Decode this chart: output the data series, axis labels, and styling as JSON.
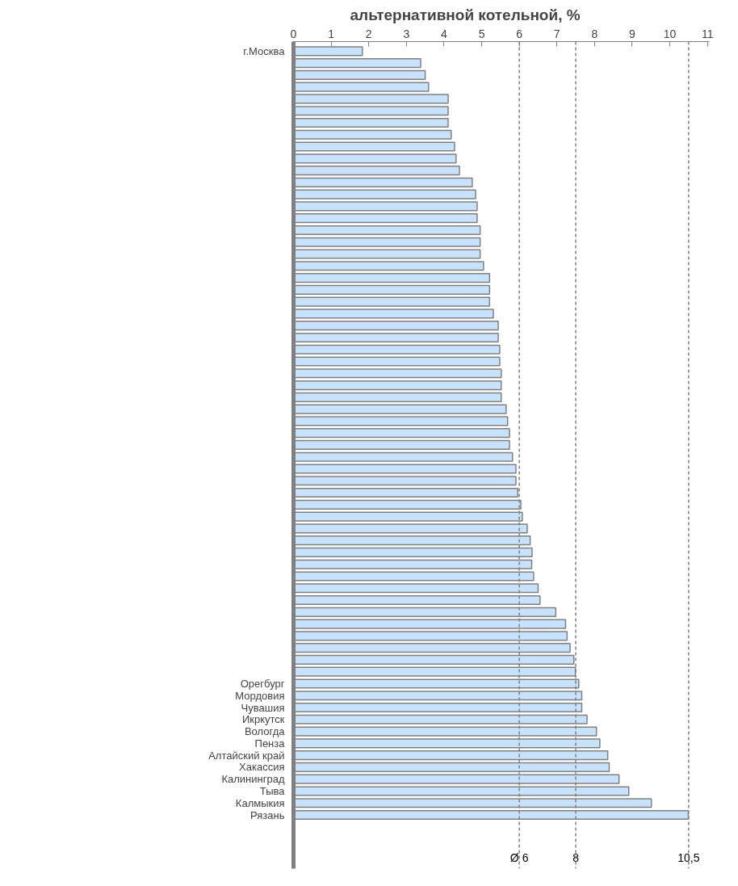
{
  "chart_data": {
    "type": "bar",
    "orientation": "horizontal",
    "title": "альтернативной котельной, %",
    "categories": [
      "г.Москва",
      null,
      null,
      null,
      null,
      null,
      null,
      null,
      null,
      null,
      null,
      null,
      null,
      null,
      null,
      null,
      null,
      null,
      null,
      null,
      null,
      null,
      null,
      null,
      null,
      null,
      null,
      null,
      null,
      null,
      null,
      null,
      null,
      null,
      null,
      null,
      null,
      null,
      null,
      null,
      null,
      null,
      null,
      null,
      null,
      null,
      null,
      null,
      null,
      null,
      null,
      null,
      null,
      "Орегбург",
      "Мордовия",
      "Чувашия",
      "Икркутск",
      "Вологда",
      "Пенза",
      "Алтайский край",
      "Хакассия",
      "Калининград",
      "Тыва",
      "Калмыкия",
      "Рязань"
    ],
    "values": [
      1.83,
      3.38,
      3.5,
      3.59,
      4.11,
      4.11,
      4.11,
      4.19,
      4.28,
      4.32,
      4.41,
      4.75,
      4.84,
      4.88,
      4.88,
      4.96,
      4.96,
      4.96,
      5.05,
      5.21,
      5.21,
      5.21,
      5.31,
      5.44,
      5.44,
      5.48,
      5.48,
      5.52,
      5.52,
      5.52,
      5.65,
      5.69,
      5.74,
      5.74,
      5.82,
      5.91,
      5.91,
      5.96,
      6.04,
      6.08,
      6.21,
      6.29,
      6.34,
      6.33,
      6.38,
      6.5,
      6.55,
      6.97,
      7.23,
      7.27,
      7.35,
      7.45,
      7.49,
      7.58,
      7.66,
      7.66,
      7.8,
      8.05,
      8.14,
      8.35,
      8.39,
      8.65,
      8.91,
      9.51,
      10.49
    ],
    "color": "#c9e2fb",
    "xlim": [
      0,
      11.05
    ],
    "xticks": [
      0,
      1,
      2,
      3,
      4,
      5,
      6,
      7,
      8,
      9,
      10,
      11
    ],
    "grid": false,
    "ref_lines": [
      {
        "axis": "x",
        "value": 6,
        "label": "Ø 6",
        "color": "#808080",
        "line_style": "dashed"
      },
      {
        "axis": "x",
        "value": 7.5,
        "label": "8",
        "color": "#808080",
        "line_style": "dashed"
      },
      {
        "axis": "x",
        "value": 10.5,
        "label": "10,5",
        "color": "#808080",
        "line_style": "dashed"
      }
    ]
  }
}
